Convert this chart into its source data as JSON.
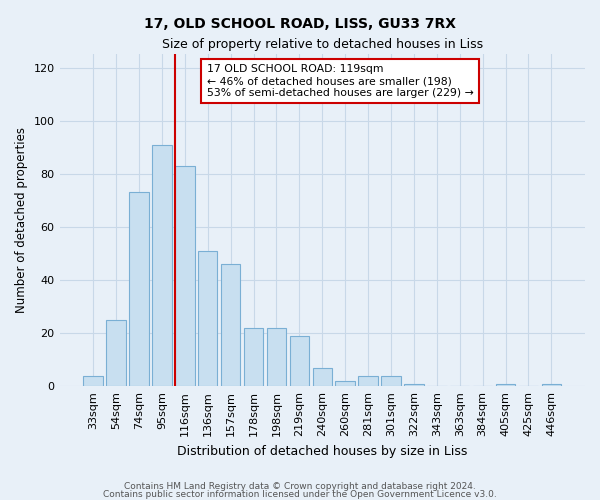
{
  "title1": "17, OLD SCHOOL ROAD, LISS, GU33 7RX",
  "title2": "Size of property relative to detached houses in Liss",
  "xlabel": "Distribution of detached houses by size in Liss",
  "ylabel": "Number of detached properties",
  "bar_labels": [
    "33sqm",
    "54sqm",
    "74sqm",
    "95sqm",
    "116sqm",
    "136sqm",
    "157sqm",
    "178sqm",
    "198sqm",
    "219sqm",
    "240sqm",
    "260sqm",
    "281sqm",
    "301sqm",
    "322sqm",
    "343sqm",
    "363sqm",
    "384sqm",
    "405sqm",
    "425sqm",
    "446sqm"
  ],
  "bar_values": [
    4,
    25,
    73,
    91,
    83,
    51,
    46,
    22,
    22,
    19,
    7,
    2,
    4,
    4,
    1,
    0,
    0,
    0,
    1,
    0,
    1
  ],
  "bar_color": "#c8dff0",
  "bar_edge_color": "#7aafd4",
  "vline_color": "#cc0000",
  "annotation_text": "17 OLD SCHOOL ROAD: 119sqm\n← 46% of detached houses are smaller (198)\n53% of semi-detached houses are larger (229) →",
  "annotation_box_color": "#ffffff",
  "annotation_box_edge": "#cc0000",
  "ylim": [
    0,
    125
  ],
  "yticks": [
    0,
    20,
    40,
    60,
    80,
    100,
    120
  ],
  "grid_color": "#c8d8e8",
  "bg_color": "#e8f0f8",
  "footer1": "Contains HM Land Registry data © Crown copyright and database right 2024.",
  "footer2": "Contains public sector information licensed under the Open Government Licence v3.0."
}
